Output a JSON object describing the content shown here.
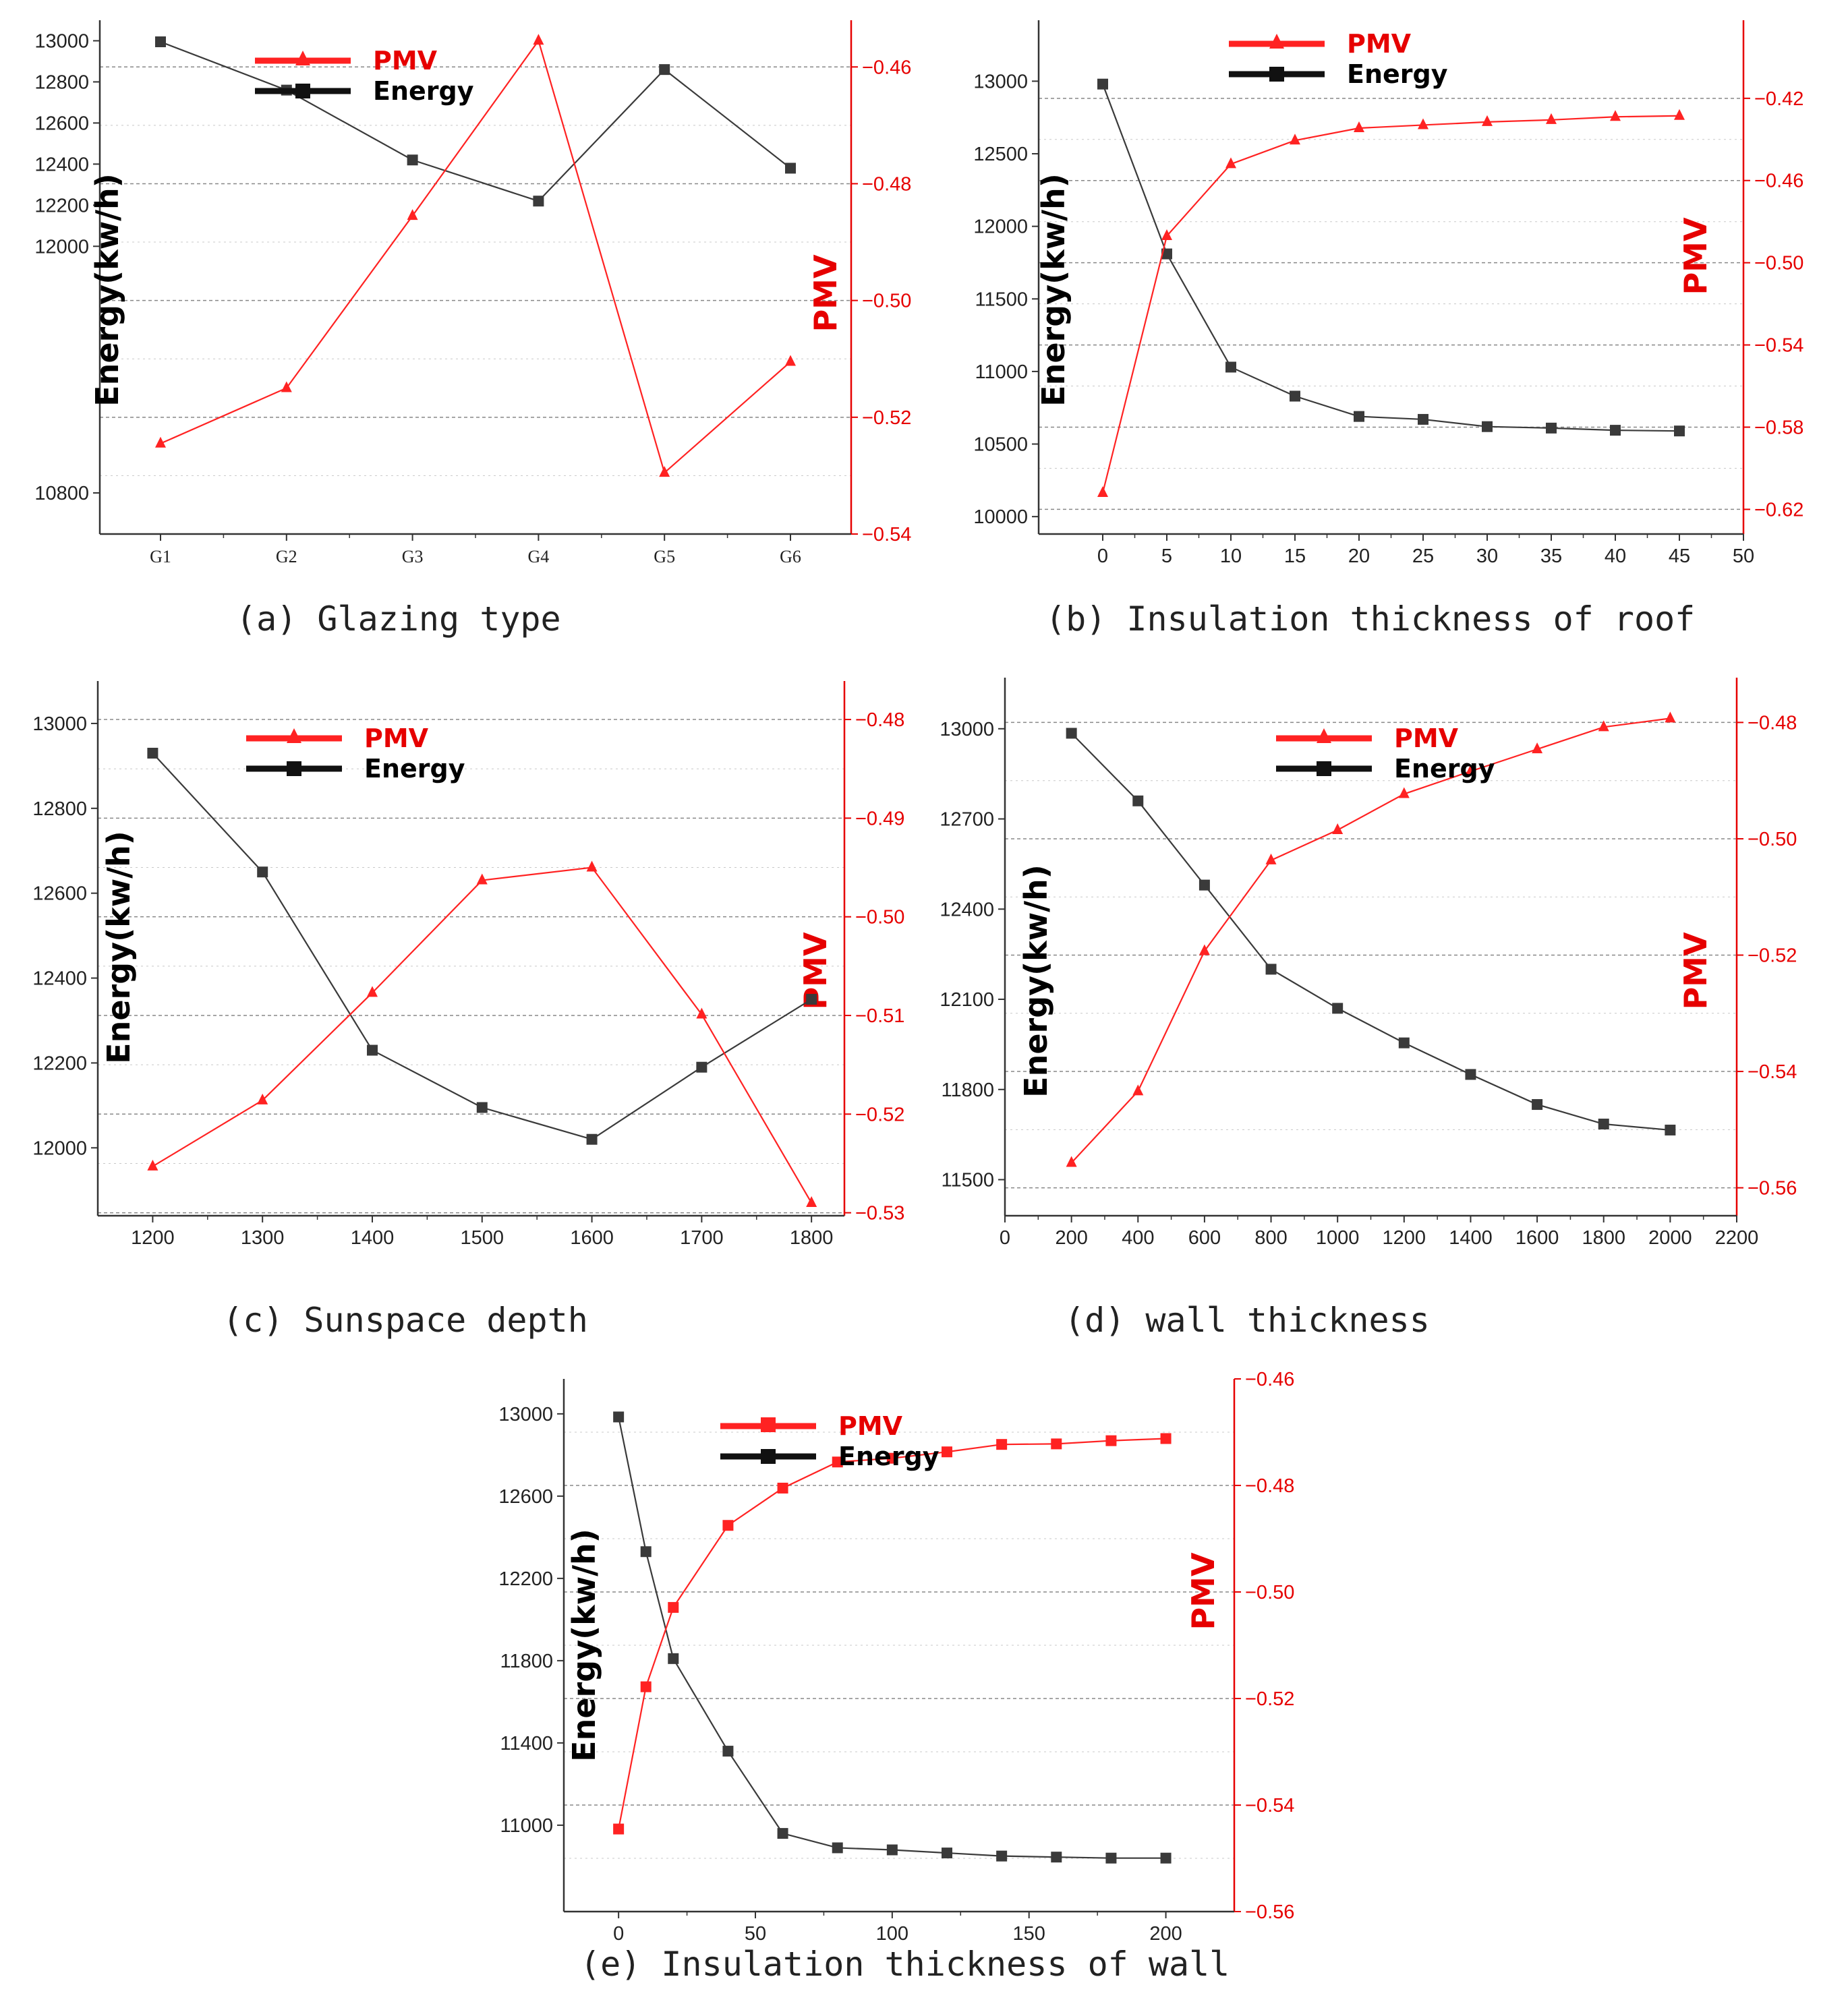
{
  "colors": {
    "energy": "#3a3a3a",
    "pmv": "#ff2222",
    "pmv_axis": "#e60000",
    "grid": "#888888"
  },
  "chart_data": [
    {
      "id": "a",
      "type": "line",
      "caption": "(a) Glazing type",
      "x_type": "categorical",
      "categories": [
        "G1",
        "G2",
        "G3",
        "G4",
        "G5",
        "G6"
      ],
      "ylabel_left": "Energy(kw/h)",
      "ylabel_right": "PMV",
      "ylim_left": [
        10600,
        13100
      ],
      "ylim_right": [
        -0.54,
        -0.452
      ],
      "left_ticks": [
        {
          "v": 13000,
          "label": "13000"
        },
        {
          "v": 12800,
          "label": "12800"
        },
        {
          "v": 12600,
          "label": "12600"
        },
        {
          "v": 12400,
          "label": "12400"
        },
        {
          "v": 12200,
          "label": "12200"
        },
        {
          "v": 12000,
          "label": "12000"
        },
        {
          "v": 10800,
          "label": "10800"
        }
      ],
      "right_ticks": [
        {
          "v": -0.46,
          "label": "−0.46"
        },
        {
          "v": -0.48,
          "label": "−0.48"
        },
        {
          "v": -0.5,
          "label": "−0.50"
        },
        {
          "v": -0.52,
          "label": "−0.52"
        },
        {
          "v": -0.54,
          "label": "−0.54"
        }
      ],
      "series": [
        {
          "name": "Energy",
          "axis": "left",
          "marker": "square",
          "values": [
            12995,
            12760,
            12420,
            12220,
            12860,
            12380
          ]
        },
        {
          "name": "PMV",
          "axis": "right",
          "marker": "triangle",
          "values": [
            -0.5245,
            -0.515,
            -0.4855,
            -0.4555,
            -0.5295,
            -0.5105
          ]
        }
      ],
      "legend": [
        "PMV",
        "Energy"
      ]
    },
    {
      "id": "b",
      "type": "line",
      "caption": "(b) Insulation thickness of roof",
      "x_type": "numeric",
      "xlim": [
        -5,
        50
      ],
      "x_ticks": [
        {
          "v": 0,
          "label": "0"
        },
        {
          "v": 5,
          "label": "5"
        },
        {
          "v": 10,
          "label": "10"
        },
        {
          "v": 15,
          "label": "15"
        },
        {
          "v": 20,
          "label": "20"
        },
        {
          "v": 25,
          "label": "25"
        },
        {
          "v": 30,
          "label": "30"
        },
        {
          "v": 35,
          "label": "35"
        },
        {
          "v": 40,
          "label": "40"
        },
        {
          "v": 45,
          "label": "45"
        },
        {
          "v": 50,
          "label": "50"
        }
      ],
      "x": [
        0,
        5,
        10,
        15,
        20,
        25,
        30,
        35,
        40,
        45
      ],
      "ylabel_left": "Energy(kw/h)",
      "ylabel_right": "PMV",
      "ylim_left": [
        9880,
        13420
      ],
      "ylim_right": [
        -0.632,
        -0.382
      ],
      "left_ticks": [
        {
          "v": 13000,
          "label": "13000"
        },
        {
          "v": 12500,
          "label": "12500"
        },
        {
          "v": 12000,
          "label": "12000"
        },
        {
          "v": 11500,
          "label": "11500"
        },
        {
          "v": 11000,
          "label": "11000"
        },
        {
          "v": 10500,
          "label": "10500"
        },
        {
          "v": 10000,
          "label": "10000"
        }
      ],
      "right_ticks": [
        {
          "v": -0.42,
          "label": "−0.42"
        },
        {
          "v": -0.46,
          "label": "−0.46"
        },
        {
          "v": -0.5,
          "label": "−0.50"
        },
        {
          "v": -0.54,
          "label": "−0.54"
        },
        {
          "v": -0.58,
          "label": "−0.58"
        },
        {
          "v": -0.62,
          "label": "−0.62"
        }
      ],
      "series": [
        {
          "name": "Energy",
          "axis": "left",
          "marker": "square",
          "values": [
            12980,
            11810,
            11030,
            10830,
            10690,
            10670,
            10620,
            10610,
            10595,
            10590
          ]
        },
        {
          "name": "PMV",
          "axis": "right",
          "marker": "triangle",
          "values": [
            -0.612,
            -0.487,
            -0.452,
            -0.4405,
            -0.4345,
            -0.433,
            -0.4315,
            -0.4305,
            -0.429,
            -0.4285
          ]
        }
      ],
      "legend": [
        "PMV",
        "Energy"
      ]
    },
    {
      "id": "c",
      "type": "line",
      "caption": "(c) Sunspace depth",
      "x_type": "numeric",
      "xlim": [
        1150,
        1830
      ],
      "x_ticks": [
        {
          "v": 1200,
          "label": "1200"
        },
        {
          "v": 1300,
          "label": "1300"
        },
        {
          "v": 1400,
          "label": "1400"
        },
        {
          "v": 1500,
          "label": "1500"
        },
        {
          "v": 1600,
          "label": "1600"
        },
        {
          "v": 1700,
          "label": "1700"
        },
        {
          "v": 1800,
          "label": "1800"
        }
      ],
      "x": [
        1200,
        1300,
        1400,
        1500,
        1600,
        1700,
        1800
      ],
      "ylabel_left": "Energy(kw/h)",
      "ylabel_right": "PMV",
      "ylim_left": [
        11840,
        13100
      ],
      "ylim_right": [
        -0.5303,
        -0.4761
      ],
      "left_ticks": [
        {
          "v": 13000,
          "label": "13000"
        },
        {
          "v": 12800,
          "label": "12800"
        },
        {
          "v": 12600,
          "label": "12600"
        },
        {
          "v": 12400,
          "label": "12400"
        },
        {
          "v": 12200,
          "label": "12200"
        },
        {
          "v": 12000,
          "label": "12000"
        }
      ],
      "right_ticks": [
        {
          "v": -0.48,
          "label": "−0.48"
        },
        {
          "v": -0.49,
          "label": "−0.49"
        },
        {
          "v": -0.5,
          "label": "−0.50"
        },
        {
          "v": -0.51,
          "label": "−0.51"
        },
        {
          "v": -0.52,
          "label": "−0.52"
        },
        {
          "v": -0.53,
          "label": "−0.53"
        }
      ],
      "series": [
        {
          "name": "Energy",
          "axis": "left",
          "marker": "square",
          "values": [
            12930,
            12650,
            12230,
            12095,
            12020,
            12190,
            12350
          ]
        },
        {
          "name": "PMV",
          "axis": "right",
          "marker": "triangle",
          "values": [
            -0.5253,
            -0.5186,
            -0.5077,
            -0.4963,
            -0.495,
            -0.5099,
            -0.529
          ]
        }
      ],
      "legend": [
        "PMV",
        "Energy"
      ]
    },
    {
      "id": "d",
      "type": "line",
      "caption": "(d) wall thickness",
      "x_type": "numeric",
      "xlim": [
        0,
        2200
      ],
      "x_ticks": [
        {
          "v": 0,
          "label": "0"
        },
        {
          "v": 200,
          "label": "200"
        },
        {
          "v": 400,
          "label": "400"
        },
        {
          "v": 600,
          "label": "600"
        },
        {
          "v": 800,
          "label": "800"
        },
        {
          "v": 1000,
          "label": "1000"
        },
        {
          "v": 1200,
          "label": "1200"
        },
        {
          "v": 1400,
          "label": "1400"
        },
        {
          "v": 1600,
          "label": "1600"
        },
        {
          "v": 1800,
          "label": "1800"
        },
        {
          "v": 2000,
          "label": "2000"
        },
        {
          "v": 2200,
          "label": "2200"
        }
      ],
      "x": [
        200,
        400,
        600,
        800,
        1000,
        1200,
        1400,
        1600,
        1800,
        2000
      ],
      "ylabel_left": "Energy(kw/h)",
      "ylabel_right": "PMV",
      "ylim_left": [
        11380,
        13170
      ],
      "ylim_right": [
        -0.5648,
        -0.4723
      ],
      "left_ticks": [
        {
          "v": 13000,
          "label": "13000"
        },
        {
          "v": 12700,
          "label": "12700"
        },
        {
          "v": 12400,
          "label": "12400"
        },
        {
          "v": 12100,
          "label": "12100"
        },
        {
          "v": 11800,
          "label": "11800"
        },
        {
          "v": 11500,
          "label": "11500"
        }
      ],
      "right_ticks": [
        {
          "v": -0.48,
          "label": "−0.48"
        },
        {
          "v": -0.5,
          "label": "−0.50"
        },
        {
          "v": -0.52,
          "label": "−0.52"
        },
        {
          "v": -0.54,
          "label": "−0.54"
        },
        {
          "v": -0.56,
          "label": "−0.56"
        }
      ],
      "series": [
        {
          "name": "Energy",
          "axis": "left",
          "marker": "square",
          "values": [
            12985,
            12760,
            12480,
            12200,
            12070,
            11955,
            11850,
            11750,
            11685,
            11665
          ]
        },
        {
          "name": "PMV",
          "axis": "right",
          "marker": "triangle",
          "values": [
            -0.5557,
            -0.5434,
            -0.5193,
            -0.5037,
            -0.4985,
            -0.4923,
            -0.4884,
            -0.4846,
            -0.4808,
            -0.4793
          ]
        }
      ],
      "legend": [
        "PMV",
        "Energy"
      ]
    },
    {
      "id": "e",
      "type": "line",
      "caption": "(e) Insulation thickness of wall",
      "x_type": "numeric",
      "xlim": [
        -20,
        225
      ],
      "x_ticks": [
        {
          "v": 0,
          "label": "0"
        },
        {
          "v": 50,
          "label": "50"
        },
        {
          "v": 100,
          "label": "100"
        },
        {
          "v": 150,
          "label": "150"
        },
        {
          "v": 200,
          "label": "200"
        }
      ],
      "x": [
        0,
        10,
        20,
        40,
        60,
        80,
        100,
        120,
        140,
        160,
        180,
        200
      ],
      "ylabel_left": "Energy(kw/h)",
      "ylabel_right": "PMV",
      "ylim_left": [
        10580,
        13170
      ],
      "ylim_right": [
        -0.56,
        -0.46
      ],
      "left_ticks": [
        {
          "v": 13000,
          "label": "13000"
        },
        {
          "v": 12600,
          "label": "12600"
        },
        {
          "v": 12200,
          "label": "12200"
        },
        {
          "v": 11800,
          "label": "11800"
        },
        {
          "v": 11400,
          "label": "11400"
        },
        {
          "v": 11000,
          "label": "11000"
        }
      ],
      "right_ticks": [
        {
          "v": -0.46,
          "label": "−0.46"
        },
        {
          "v": -0.48,
          "label": "−0.48"
        },
        {
          "v": -0.5,
          "label": "−0.50"
        },
        {
          "v": -0.52,
          "label": "−0.52"
        },
        {
          "v": -0.54,
          "label": "−0.54"
        },
        {
          "v": -0.56,
          "label": "−0.56"
        }
      ],
      "series": [
        {
          "name": "Energy",
          "axis": "left",
          "marker": "square",
          "values": [
            12985,
            12330,
            11810,
            11360,
            10960,
            10890,
            10880,
            10865,
            10850,
            10845,
            10840,
            10840
          ]
        },
        {
          "name": "PMV",
          "axis": "right",
          "marker": "square",
          "values": [
            -0.5445,
            -0.5178,
            -0.5029,
            -0.4875,
            -0.4805,
            -0.4756,
            -0.4749,
            -0.4737,
            -0.4723,
            -0.4722,
            -0.4716,
            -0.4712
          ]
        }
      ],
      "legend": [
        "PMV",
        "Energy"
      ]
    }
  ]
}
